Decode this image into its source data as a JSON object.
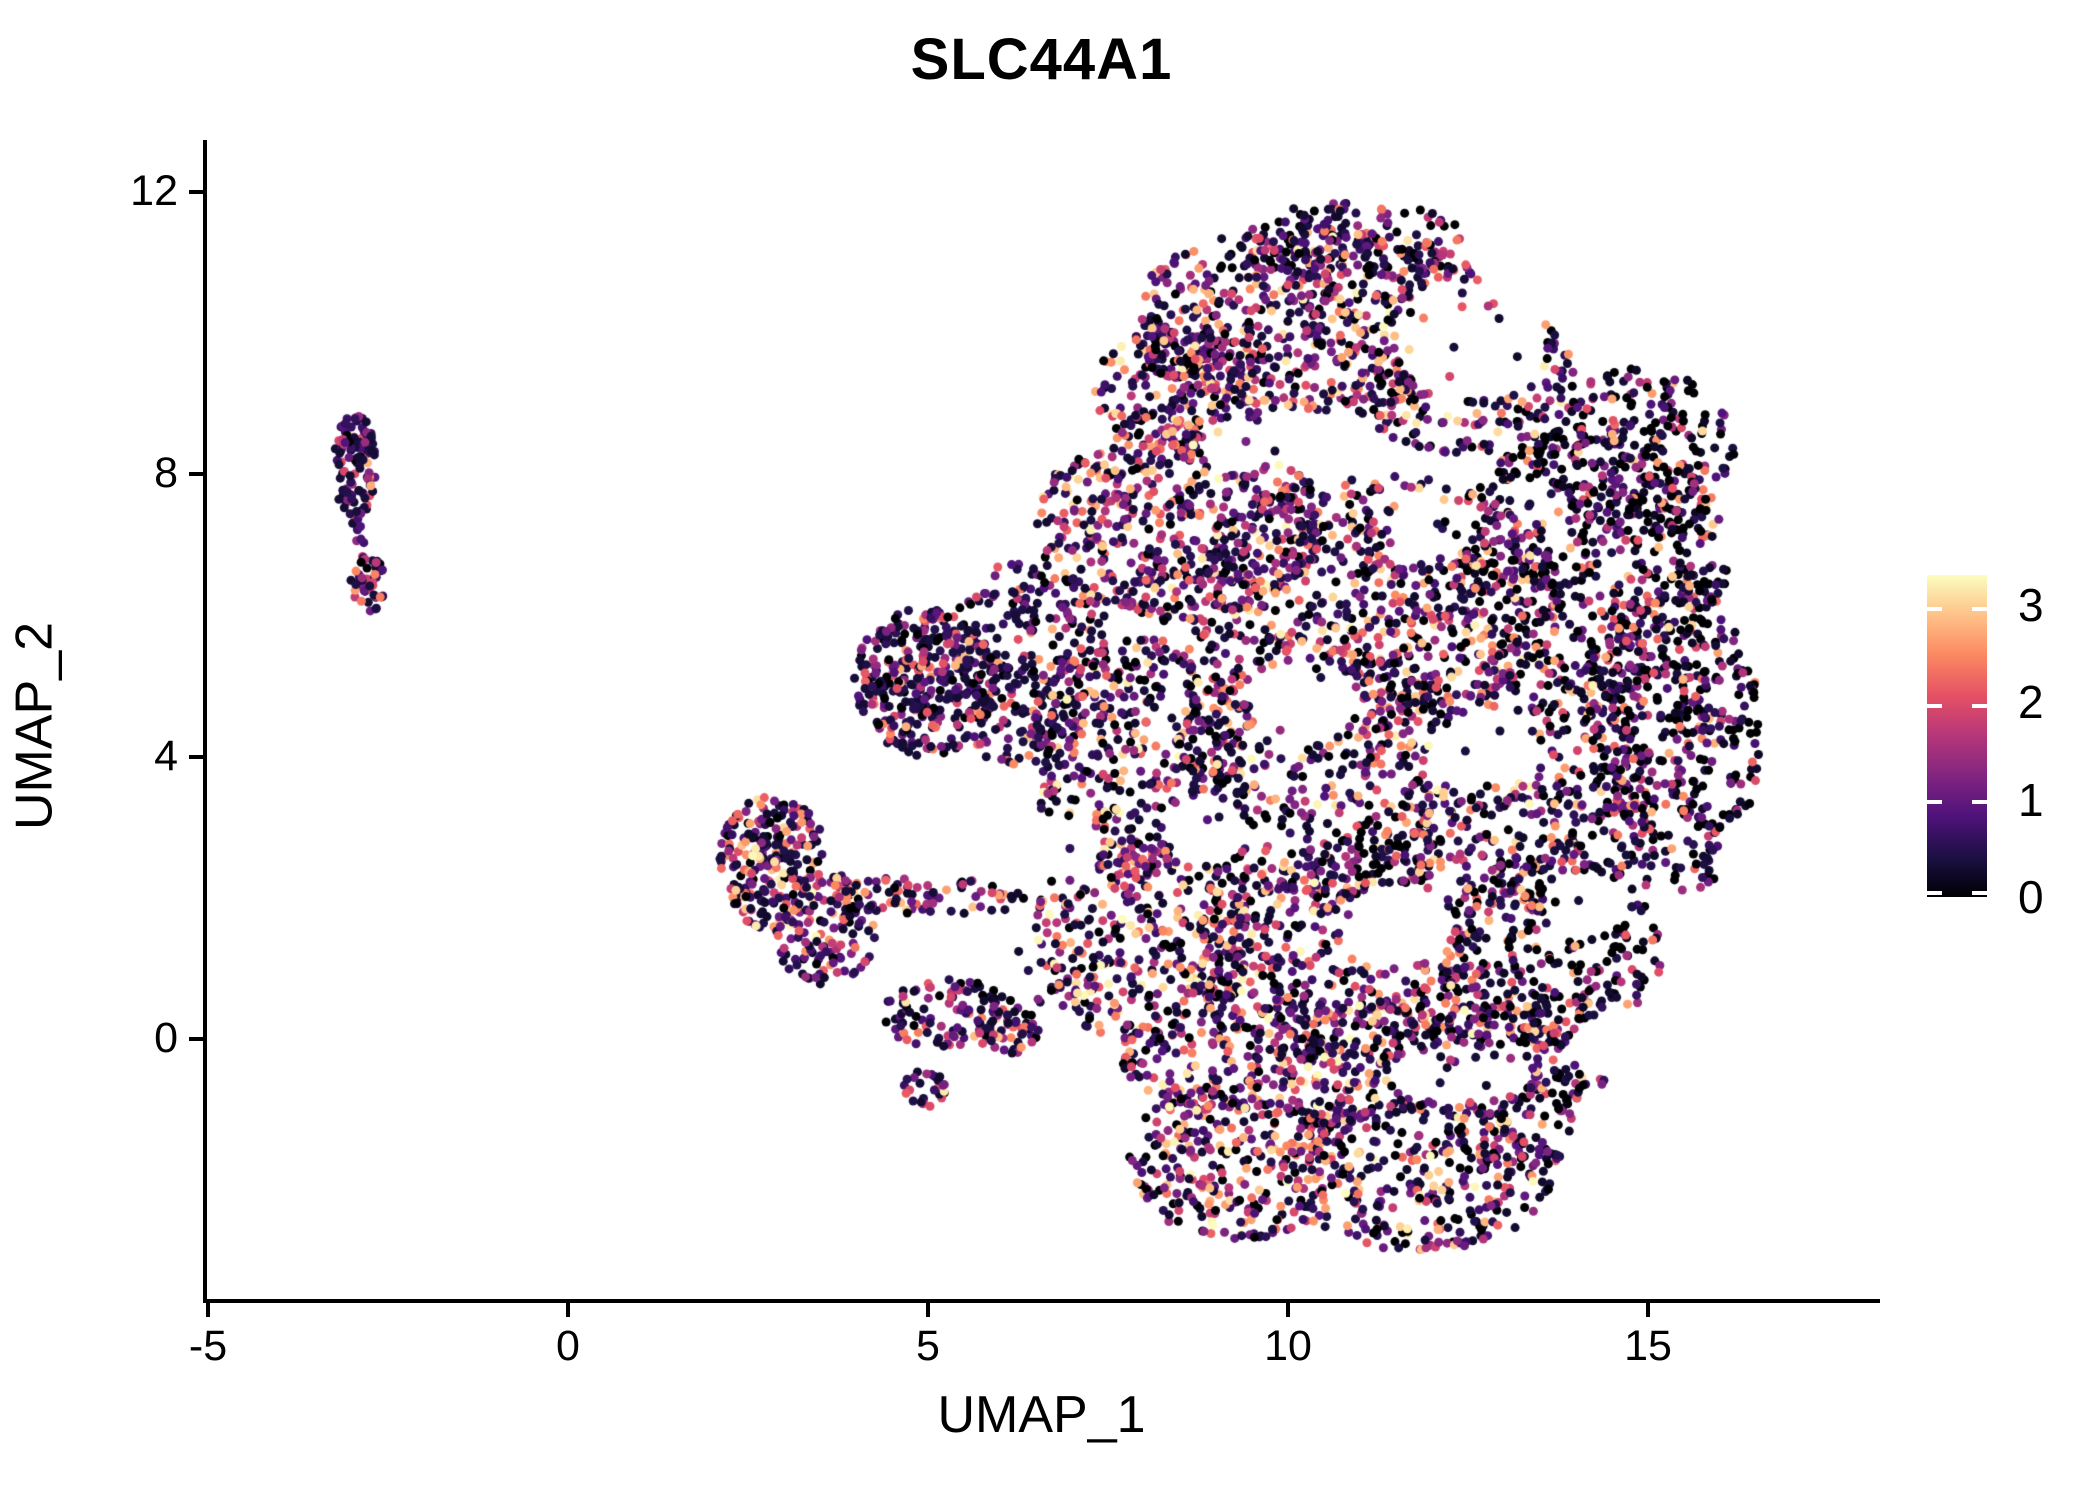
{
  "title": "SLC44A1",
  "axes": {
    "x": {
      "label": "UMAP_1",
      "tick_labels": [
        "-5",
        "0",
        "5",
        "10",
        "15"
      ],
      "tick_values": [
        -5,
        0,
        5,
        10,
        15
      ]
    },
    "y": {
      "label": "UMAP_2",
      "tick_labels": [
        "0",
        "4",
        "8",
        "12"
      ],
      "tick_values": [
        0,
        4,
        8,
        12
      ]
    }
  },
  "colorbar": {
    "tick_labels": [
      "3",
      "2",
      "1",
      "0"
    ],
    "tick_values": [
      3,
      2,
      1,
      0
    ],
    "vmin": 0,
    "vmax": 3.335,
    "colormap": "magma"
  },
  "chart_data": {
    "type": "scatter",
    "title": "SLC44A1",
    "xlabel": "UMAP_1",
    "ylabel": "UMAP_2",
    "xlim": [
      -5,
      18.2
    ],
    "ylim": [
      -3.7,
      12.7
    ],
    "xticks": [
      -5,
      0,
      5,
      10,
      15
    ],
    "yticks": [
      0,
      4,
      8,
      12
    ],
    "legend": "continuous expression colorbar, right side, ticks 0-3",
    "grid": false,
    "point_radius_px": 4.5,
    "seed": 1337,
    "color_scale": {
      "name": "magma",
      "value_min": 0,
      "value_max": 3.3,
      "stops": [
        [
          0.0,
          "#000004"
        ],
        [
          0.125,
          "#1c1044"
        ],
        [
          0.25,
          "#4f127b"
        ],
        [
          0.375,
          "#812581"
        ],
        [
          0.5,
          "#b5367a"
        ],
        [
          0.625,
          "#e55064"
        ],
        [
          0.75,
          "#fb8861"
        ],
        [
          0.875,
          "#fec287"
        ],
        [
          1.0,
          "#fcfdbf"
        ]
      ]
    },
    "expression_profiles": {
      "default": {
        "p0": 0.18,
        "gamma": 2.1,
        "vmin": 0.25,
        "vmax": 3.3
      },
      "pinkish": {
        "p0": 0.12,
        "gamma": 1.7,
        "vmin": 0.25,
        "vmax": 3.3
      },
      "darkish": {
        "p0": 0.32,
        "gamma": 2.5,
        "vmin": 0.2,
        "vmax": 3.1
      },
      "verydark": {
        "p0": 0.1,
        "gamma": 3.2,
        "vmin": 0.3,
        "vmax": 2.9
      },
      "mid": {
        "p0": 0.08,
        "gamma": 2.0,
        "vmin": 0.25,
        "vmax": 3.3
      },
      "small": {
        "p0": 0.05,
        "gamma": 2.6,
        "vmin": 0.3,
        "vmax": 2.9
      }
    },
    "clusters": [
      {
        "name": "left-small-upper",
        "cx": -2.95,
        "cy": 8.1,
        "rx": 0.3,
        "ry": 0.78,
        "n": 120,
        "profile": "small"
      },
      {
        "name": "left-small-lower",
        "cx": -2.78,
        "cy": 6.45,
        "rx": 0.24,
        "ry": 0.42,
        "n": 50,
        "profile": "small"
      },
      {
        "name": "left-small-neck",
        "cx": -2.88,
        "cy": 7.3,
        "rx": 0.12,
        "ry": 0.3,
        "n": 8,
        "profile": "small"
      },
      {
        "name": "mid-core",
        "cx": 2.85,
        "cy": 2.5,
        "rx": 0.75,
        "ry": 0.95,
        "n": 230,
        "profile": "mid"
      },
      {
        "name": "mid-lower",
        "cx": 3.6,
        "cy": 1.55,
        "rx": 0.75,
        "ry": 0.8,
        "n": 130,
        "profile": "mid"
      },
      {
        "name": "mid-chain-a",
        "cx": 4.4,
        "cy": 2.05,
        "rx": 0.8,
        "ry": 0.3,
        "n": 45,
        "profile": "mid"
      },
      {
        "name": "mid-chain-b",
        "cx": 5.6,
        "cy": 2.0,
        "rx": 0.9,
        "ry": 0.25,
        "n": 35,
        "profile": "mid"
      },
      {
        "name": "mid-arm",
        "cx": 5.3,
        "cy": 0.35,
        "rx": 0.95,
        "ry": 0.5,
        "n": 110,
        "profile": "mid"
      },
      {
        "name": "mid-arm-tip",
        "cx": 6.15,
        "cy": 0.1,
        "rx": 0.45,
        "ry": 0.35,
        "n": 45,
        "profile": "mid"
      },
      {
        "name": "mid-droplet",
        "cx": 4.95,
        "cy": -0.72,
        "rx": 0.3,
        "ry": 0.28,
        "n": 26,
        "profile": "mid"
      },
      {
        "name": "mid-bridge",
        "cx": 6.9,
        "cy": 1.1,
        "rx": 0.7,
        "ry": 0.7,
        "n": 22,
        "profile": "mid"
      },
      {
        "name": "top-lobe-core",
        "cx": 10.4,
        "cy": 10.2,
        "rx": 2.6,
        "ry": 1.35,
        "n": 700,
        "profile": "pinkish"
      },
      {
        "name": "top-lobe-west",
        "cx": 8.6,
        "cy": 9.2,
        "rx": 1.3,
        "ry": 1.0,
        "n": 250,
        "profile": "pinkish"
      },
      {
        "name": "top-lobe-east",
        "cx": 12.4,
        "cy": 9.4,
        "rx": 1.6,
        "ry": 1.1,
        "n": 260,
        "profile": "default"
      },
      {
        "name": "top-apex",
        "cx": 10.9,
        "cy": 11.3,
        "rx": 1.6,
        "ry": 0.55,
        "n": 120,
        "profile": "default"
      },
      {
        "name": "upper-mid-band",
        "cx": 8.5,
        "cy": 7.3,
        "rx": 2.0,
        "ry": 1.4,
        "n": 550,
        "profile": "pinkish"
      },
      {
        "name": "mid-wide",
        "cx": 11.2,
        "cy": 6.2,
        "rx": 2.6,
        "ry": 1.8,
        "n": 700,
        "profile": "default"
      },
      {
        "name": "right-upper",
        "cx": 14.2,
        "cy": 6.8,
        "rx": 1.9,
        "ry": 1.9,
        "n": 520,
        "profile": "darkish"
      },
      {
        "name": "east-shoulder",
        "cx": 14.9,
        "cy": 8.3,
        "rx": 1.3,
        "ry": 1.2,
        "n": 230,
        "profile": "darkish"
      },
      {
        "name": "far-right-rim",
        "cx": 15.4,
        "cy": 4.3,
        "rx": 1.15,
        "ry": 2.3,
        "n": 420,
        "profile": "darkish"
      },
      {
        "name": "promontory",
        "cx": 4.95,
        "cy": 5.05,
        "rx": 1.0,
        "ry": 1.05,
        "n": 330,
        "profile": "verydark"
      },
      {
        "name": "left-mid",
        "cx": 6.4,
        "cy": 5.3,
        "rx": 1.2,
        "ry": 1.5,
        "n": 300,
        "profile": "verydark"
      },
      {
        "name": "center-left",
        "cx": 8.0,
        "cy": 4.0,
        "rx": 1.6,
        "ry": 1.7,
        "n": 420,
        "profile": "default"
      },
      {
        "name": "center",
        "cx": 10.6,
        "cy": 3.8,
        "rx": 2.2,
        "ry": 1.9,
        "n": 520,
        "profile": "default"
      },
      {
        "name": "right-mid",
        "cx": 13.4,
        "cy": 3.6,
        "rx": 1.7,
        "ry": 1.8,
        "n": 430,
        "profile": "default"
      },
      {
        "name": "lower-left",
        "cx": 8.0,
        "cy": 1.5,
        "rx": 1.5,
        "ry": 1.6,
        "n": 380,
        "profile": "pinkish"
      },
      {
        "name": "lower-center",
        "cx": 10.7,
        "cy": 1.2,
        "rx": 2.0,
        "ry": 1.6,
        "n": 480,
        "profile": "default"
      },
      {
        "name": "lower-right",
        "cx": 13.6,
        "cy": 1.2,
        "rx": 1.6,
        "ry": 1.4,
        "n": 330,
        "profile": "darkish"
      },
      {
        "name": "bottom-band",
        "cx": 10.3,
        "cy": -0.3,
        "rx": 2.6,
        "ry": 0.9,
        "n": 380,
        "profile": "pinkish"
      },
      {
        "name": "bottom-band-right",
        "cx": 13.2,
        "cy": -0.2,
        "rx": 1.4,
        "ry": 0.8,
        "n": 180,
        "profile": "default"
      },
      {
        "name": "bottom-lobe-west",
        "cx": 9.3,
        "cy": -1.7,
        "rx": 1.5,
        "ry": 1.15,
        "n": 300,
        "profile": "pinkish"
      },
      {
        "name": "bottom-lobe-east",
        "cx": 11.8,
        "cy": -1.9,
        "rx": 1.9,
        "ry": 1.1,
        "n": 320,
        "profile": "default"
      },
      {
        "name": "bottom-lobe-tip",
        "cx": 13.1,
        "cy": -1.1,
        "rx": 0.9,
        "ry": 0.9,
        "n": 120,
        "profile": "darkish"
      }
    ],
    "holes": [
      {
        "cx": 12.55,
        "cy": 9.9,
        "rx": 1.05,
        "ry": 0.85
      },
      {
        "cx": 10.2,
        "cy": 4.75,
        "rx": 0.75,
        "ry": 0.6
      },
      {
        "cx": 12.7,
        "cy": 4.1,
        "rx": 0.75,
        "ry": 0.55
      },
      {
        "cx": 11.5,
        "cy": 1.6,
        "rx": 0.8,
        "ry": 0.6
      },
      {
        "cx": 14.1,
        "cy": 1.9,
        "rx": 0.55,
        "ry": 0.5
      },
      {
        "cx": 8.85,
        "cy": 2.95,
        "rx": 0.6,
        "ry": 0.5
      },
      {
        "cx": 12.4,
        "cy": -0.5,
        "rx": 1.0,
        "ry": 0.4
      },
      {
        "cx": 9.3,
        "cy": 8.4,
        "rx": 0.5,
        "ry": 0.4
      },
      {
        "cx": 12.0,
        "cy": 7.3,
        "rx": 0.6,
        "ry": 0.5
      },
      {
        "cx": 14.6,
        "cy": -0.1,
        "rx": 0.7,
        "ry": 0.5
      },
      {
        "cx": 6.9,
        "cy": 2.7,
        "rx": 0.5,
        "ry": 0.45
      }
    ]
  }
}
